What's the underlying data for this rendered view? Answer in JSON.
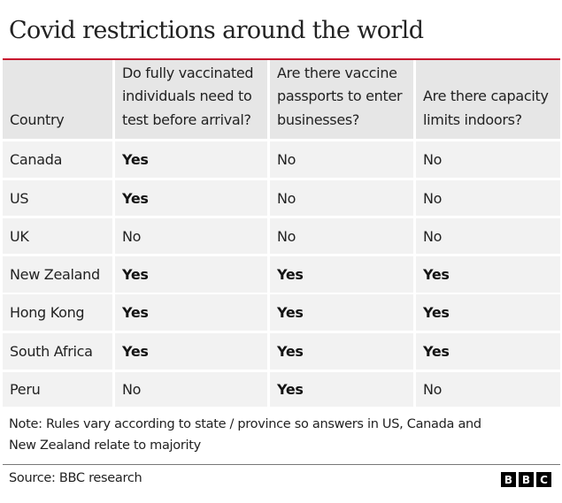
{
  "title": "Covid restrictions around the world",
  "colors": {
    "accent_rule": "#c8102e",
    "header_bg": "#e6e6e6",
    "cell_bg": "#f2f2f2"
  },
  "table": {
    "headers": [
      "Country",
      "Do fully vaccinated individuals need to test before arrival?",
      "Are there vaccine passports to enter businesses?",
      "Are there capacity limits indoors?"
    ],
    "rows": [
      [
        "Canada",
        "Yes",
        "No",
        "No"
      ],
      [
        "US",
        "Yes",
        "No",
        "No"
      ],
      [
        "UK",
        "No",
        "No",
        "No"
      ],
      [
        "New Zealand",
        "Yes",
        "Yes",
        "Yes"
      ],
      [
        "Hong Kong",
        "Yes",
        "Yes",
        "Yes"
      ],
      [
        "South Africa",
        "Yes",
        "Yes",
        "Yes"
      ],
      [
        "Peru",
        "No",
        "Yes",
        "No"
      ]
    ]
  },
  "note": "Note: Rules vary according to state / province so answers in US, Canada and New Zealand relate to majority",
  "source": "Source: BBC research",
  "logo": {
    "letters": [
      "B",
      "B",
      "C"
    ],
    "icon": "bbc-logo-icon"
  }
}
